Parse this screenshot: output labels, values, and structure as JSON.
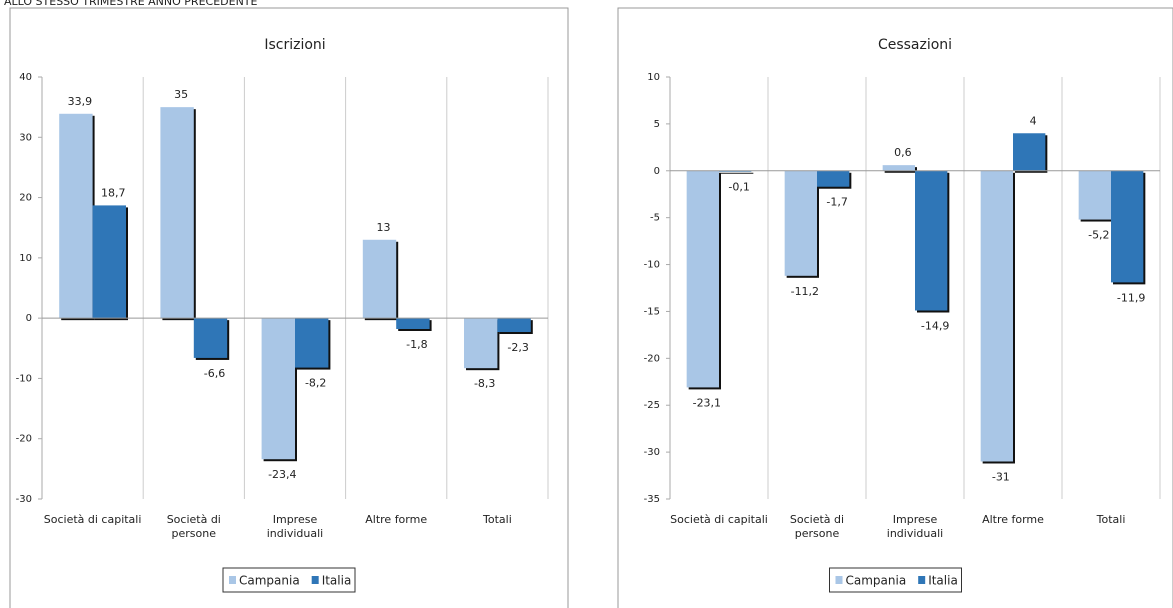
{
  "heading": "ALLO STESSO TRIMESTRE ANNO PRECEDENTE",
  "chart_data": [
    {
      "type": "bar",
      "title": "Iscrizioni",
      "categories": [
        "Società di capitali",
        "Società di persone",
        "Imprese individuali",
        "Altre forme",
        "Totali"
      ],
      "series": [
        {
          "name": "Campania",
          "color": "#a9c6e6",
          "values": [
            33.9,
            35,
            -23.4,
            13,
            -8.3
          ],
          "value_labels": [
            "33,9",
            "35",
            "-23,4",
            "13",
            "-8,3"
          ]
        },
        {
          "name": "Italia",
          "color": "#2f76b7",
          "values": [
            18.7,
            -6.6,
            -8.2,
            -1.8,
            -2.3
          ],
          "value_labels": [
            "18,7",
            "-6,6",
            "-8,2",
            "-1,8",
            "-2,3"
          ]
        }
      ],
      "ylim": [
        -30,
        40
      ],
      "yticks": [
        -30,
        -20,
        -10,
        0,
        10,
        20,
        30,
        40
      ],
      "legend": "bottom"
    },
    {
      "type": "bar",
      "title": "Cessazioni",
      "categories": [
        "Società di capitali",
        "Società di persone",
        "Imprese individuali",
        "Altre forme",
        "Totali"
      ],
      "series": [
        {
          "name": "Campania",
          "color": "#a9c6e6",
          "values": [
            -23.1,
            -11.2,
            0.6,
            -31,
            -5.2
          ],
          "value_labels": [
            "-23,1",
            "-11,2",
            "0,6",
            "-31",
            "-5,2"
          ]
        },
        {
          "name": "Italia",
          "color": "#2f76b7",
          "values": [
            -0.1,
            -1.7,
            -14.9,
            4,
            -11.9
          ],
          "value_labels": [
            "-0,1",
            "-1,7",
            "-14,9",
            "4",
            "-11,9"
          ]
        }
      ],
      "ylim": [
        -35,
        10
      ],
      "yticks": [
        -35,
        -30,
        -25,
        -20,
        -15,
        -10,
        -5,
        0,
        5,
        10
      ],
      "legend": "bottom"
    }
  ]
}
